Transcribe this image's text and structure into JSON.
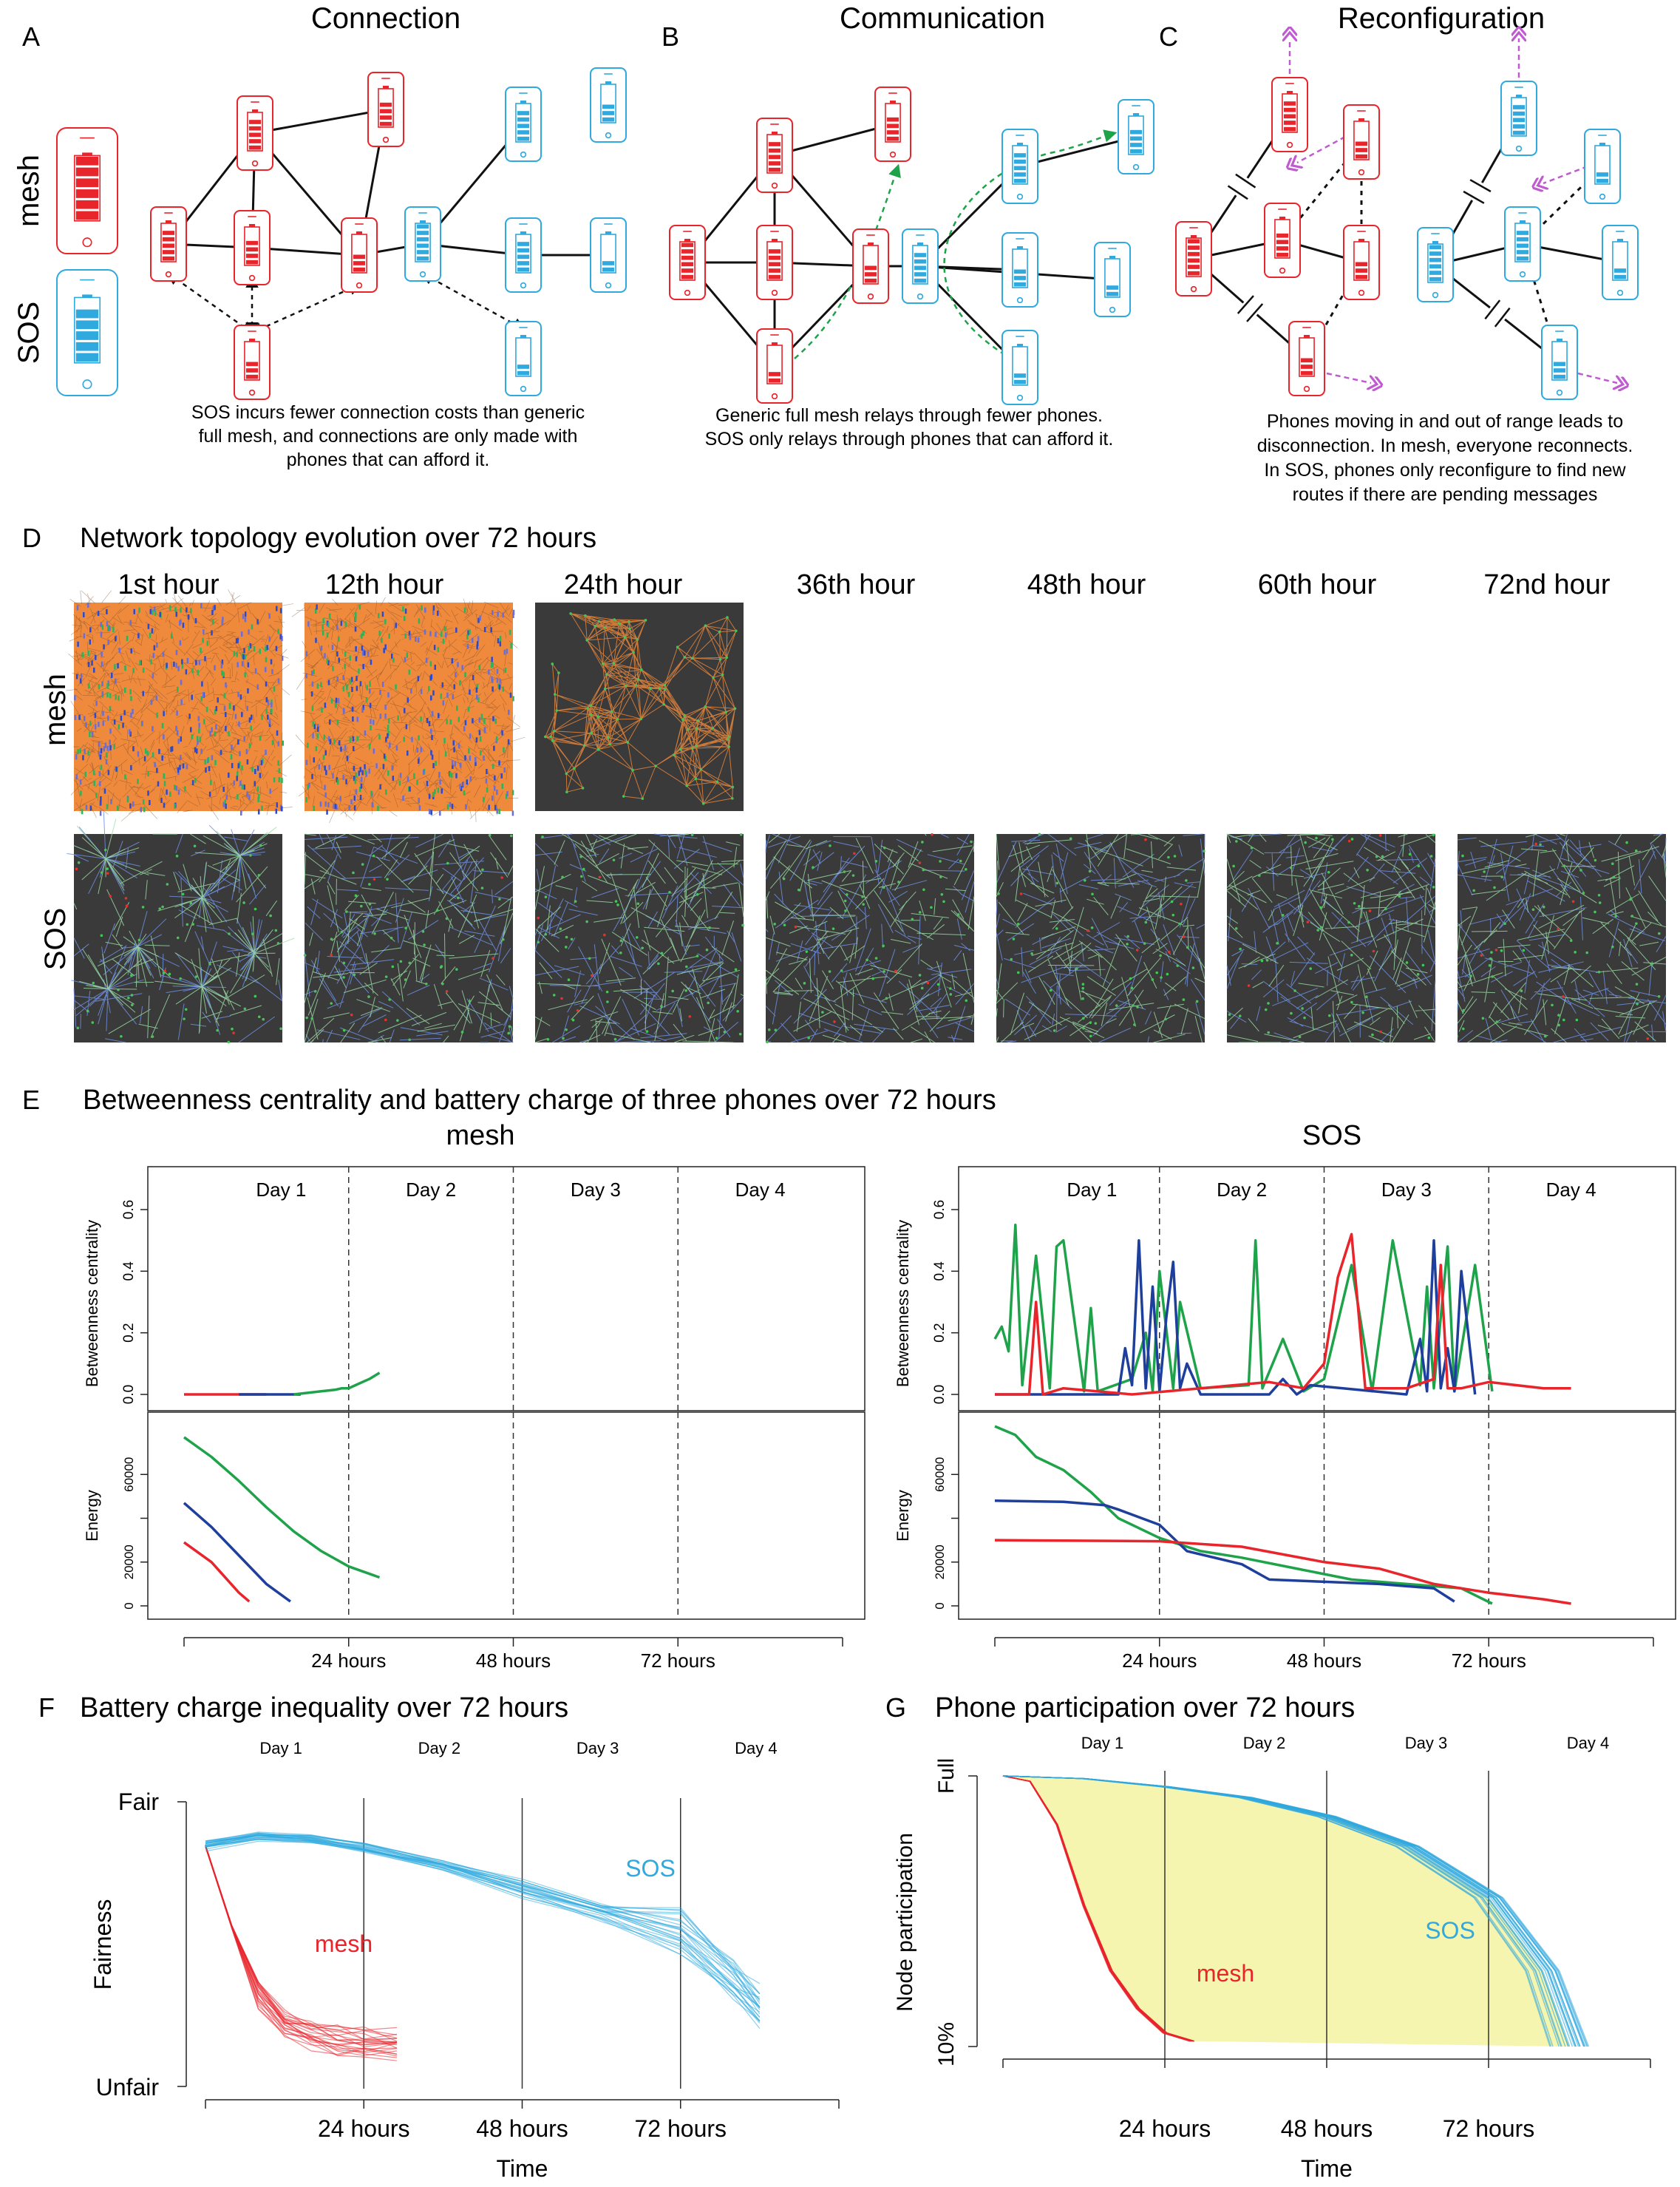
{
  "panelA": {
    "letter": "A",
    "title": "Connection",
    "legend_mesh": "mesh",
    "legend_sos": "SOS",
    "caption": [
      "SOS incurs fewer connection costs than generic",
      "full mesh, and connections are only made with",
      "phones that can afford it."
    ]
  },
  "panelB": {
    "letter": "B",
    "title": "Communication",
    "caption": [
      "Generic full mesh relays through fewer phones.",
      "SOS only relays through phones that can afford it."
    ]
  },
  "panelC": {
    "letter": "C",
    "title": "Reconfiguration",
    "caption": [
      "Phones moving in and out of range leads to",
      "disconnection. In mesh, everyone reconnects.",
      "In SOS, phones only reconfigure to find new",
      "routes if there are pending messages"
    ]
  },
  "panelD": {
    "letter": "D",
    "title": "Network topology evolution over 72 hours",
    "hours": [
      "1st hour",
      "12th hour",
      "24th hour",
      "36th hour",
      "48th hour",
      "60th hour",
      "72nd hour"
    ],
    "row_mesh": "mesh",
    "row_sos": "SOS"
  },
  "panelE": {
    "letter": "E",
    "title": "Betweenness centrality and battery charge of three phones over 72 hours",
    "mesh_title": "mesh",
    "sos_title": "SOS",
    "days": [
      "Day 1",
      "Day 2",
      "Day 3",
      "Day 4"
    ],
    "ylabel_bc": "Betweenness centrality",
    "ylabel_energy": "Energy",
    "bc_ticks": [
      "0.0",
      "0.2",
      "0.4",
      "0.6"
    ],
    "energy_ticks": [
      "0",
      "20000",
      "60000"
    ],
    "x_ticks": [
      "24 hours",
      "48 hours",
      "72 hours"
    ]
  },
  "panelF": {
    "letter": "F",
    "title": "Battery charge inequality over 72 hours",
    "ylabel": "Fairness",
    "xlabel": "Time",
    "y_top": "Fair",
    "y_bottom": "Unfair",
    "days": [
      "Day 1",
      "Day 2",
      "Day 3",
      "Day 4"
    ],
    "x_ticks": [
      "24 hours",
      "48 hours",
      "72 hours"
    ],
    "label_mesh": "mesh",
    "label_sos": "SOS"
  },
  "panelG": {
    "letter": "G",
    "title": "Phone participation over 72 hours",
    "ylabel": "Node participation",
    "xlabel": "Time",
    "y_top": "Full",
    "y_bottom": "10%",
    "days": [
      "Day 1",
      "Day 2",
      "Day 3",
      "Day 4"
    ],
    "x_ticks": [
      "24 hours",
      "48 hours",
      "72 hours"
    ],
    "label_mesh": "mesh",
    "label_sos": "SOS"
  },
  "colors": {
    "mesh": "#e8252b",
    "sos": "#30a9de",
    "green": "#1fa34a",
    "blue": "#1f3f9c",
    "orange": "#ef8a3c",
    "dark": "#3a3a3a",
    "magenta": "#c05ad0",
    "yellow": "#f6f5b0"
  },
  "chart_data": [
    {
      "type": "line",
      "title": "",
      "panel": "E mesh betweenness",
      "xlabel": "",
      "ylabel": "Betweenness centrality",
      "xlim": [
        0,
        96
      ],
      "ylim": [
        0,
        0.6
      ],
      "series": [
        {
          "color": "red",
          "x": [
            0,
            4,
            8,
            12
          ],
          "y": [
            0,
            0,
            0,
            0
          ]
        },
        {
          "color": "blue",
          "x": [
            8,
            12,
            17
          ],
          "y": [
            0,
            0,
            0
          ]
        },
        {
          "color": "green",
          "x": [
            16,
            18,
            20,
            22,
            23,
            24,
            25,
            26,
            27,
            28.5
          ],
          "y": [
            0,
            0.005,
            0.01,
            0.015,
            0.02,
            0.02,
            0.03,
            0.04,
            0.05,
            0.07
          ]
        }
      ]
    },
    {
      "type": "line",
      "title": "",
      "panel": "E mesh energy",
      "xlabel": "",
      "ylabel": "Energy",
      "xlim": [
        0,
        96
      ],
      "ylim": [
        0,
        80000
      ],
      "series": [
        {
          "color": "green",
          "x": [
            0,
            4,
            8,
            12,
            16,
            20,
            24,
            28.5
          ],
          "y": [
            77000,
            68000,
            57000,
            45000,
            34000,
            25000,
            18000,
            13000
          ]
        },
        {
          "color": "blue",
          "x": [
            0,
            4,
            8,
            12,
            15.5
          ],
          "y": [
            47000,
            36000,
            23000,
            10000,
            2000
          ]
        },
        {
          "color": "red",
          "x": [
            0,
            4,
            8,
            9.5
          ],
          "y": [
            29000,
            20000,
            6000,
            2000
          ]
        }
      ]
    },
    {
      "type": "line",
      "title": "",
      "panel": "E SOS betweenness",
      "xlabel": "",
      "ylabel": "Betweenness centrality",
      "xlim": [
        0,
        96
      ],
      "ylim": [
        0,
        0.6
      ],
      "series": [
        {
          "color": "green",
          "x": [
            0,
            1,
            2,
            3,
            4,
            6,
            8,
            9,
            10,
            13,
            14,
            15,
            20,
            22,
            23,
            24,
            26,
            27,
            30,
            37,
            38,
            39,
            42,
            45,
            48,
            52,
            55,
            58,
            62,
            63,
            64,
            66,
            67,
            70,
            72.5
          ],
          "y": [
            0.18,
            0.22,
            0.14,
            0.55,
            0.03,
            0.45,
            0.02,
            0.48,
            0.5,
            0.01,
            0.28,
            0.01,
            0.05,
            0.2,
            0.01,
            0.4,
            0.02,
            0.3,
            0.02,
            0.03,
            0.5,
            0.02,
            0.18,
            0.01,
            0.05,
            0.42,
            0.01,
            0.5,
            0.03,
            0.35,
            0.02,
            0.48,
            0.01,
            0.42,
            0.01
          ]
        },
        {
          "color": "blue",
          "x": [
            0,
            18,
            19,
            20,
            21,
            22,
            23,
            24,
            25,
            26,
            27,
            28,
            30,
            40,
            42,
            44,
            46,
            60,
            62,
            63,
            64,
            65,
            66,
            67,
            68,
            70
          ],
          "y": [
            0,
            0,
            0.15,
            0.03,
            0.5,
            0.02,
            0.35,
            0.01,
            0.25,
            0.43,
            0.02,
            0.1,
            0,
            0,
            0.05,
            0,
            0.03,
            0,
            0.18,
            0.01,
            0.5,
            0.02,
            0.15,
            0.01,
            0.4,
            0
          ]
        },
        {
          "color": "red",
          "x": [
            0,
            5,
            6,
            7,
            10,
            20,
            30,
            40,
            45,
            48,
            50,
            52,
            54,
            55,
            60,
            64,
            65,
            66,
            68,
            72,
            80,
            84
          ],
          "y": [
            0,
            0,
            0.3,
            0,
            0.02,
            0,
            0.02,
            0.04,
            0.02,
            0.1,
            0.38,
            0.52,
            0.02,
            0.02,
            0.02,
            0.05,
            0.42,
            0.02,
            0.02,
            0.04,
            0.02,
            0.02
          ]
        }
      ]
    },
    {
      "type": "line",
      "title": "",
      "panel": "E SOS energy",
      "xlabel": "",
      "ylabel": "Energy",
      "xlim": [
        0,
        96
      ],
      "ylim": [
        0,
        80000
      ],
      "series": [
        {
          "color": "green",
          "x": [
            0,
            3,
            6,
            10,
            14,
            18,
            24,
            30,
            36,
            44,
            52,
            60,
            68,
            72.5
          ],
          "y": [
            82000,
            78000,
            68000,
            62000,
            52000,
            40000,
            31000,
            25000,
            22000,
            17000,
            12000,
            10000,
            8000,
            1000
          ]
        },
        {
          "color": "blue",
          "x": [
            0,
            10,
            16,
            18,
            24,
            28,
            36,
            40,
            48,
            56,
            64,
            67
          ],
          "y": [
            48000,
            47500,
            46000,
            44000,
            37000,
            25000,
            19000,
            12000,
            11000,
            10000,
            8000,
            2000
          ]
        },
        {
          "color": "red",
          "x": [
            0,
            24,
            36,
            48,
            56,
            64,
            72,
            80,
            84
          ],
          "y": [
            30000,
            29500,
            27000,
            20000,
            17000,
            10000,
            6000,
            3000,
            1000
          ]
        }
      ]
    },
    {
      "type": "line",
      "title": "",
      "panel": "F",
      "xlabel": "Time",
      "ylabel": "Fairness",
      "xlim": [
        0,
        96
      ],
      "series": [
        {
          "name": "mesh",
          "x": [
            0,
            4,
            8,
            12,
            16,
            20,
            24,
            29
          ],
          "y": [
            0.83,
            0.55,
            0.32,
            0.22,
            0.18,
            0.16,
            0.15,
            0.14
          ]
        },
        {
          "name": "SOS",
          "x": [
            0,
            8,
            16,
            24,
            36,
            48,
            60,
            72,
            80,
            84
          ],
          "y": [
            0.83,
            0.86,
            0.85,
            0.82,
            0.76,
            0.68,
            0.6,
            0.52,
            0.35,
            0.25
          ]
        }
      ]
    },
    {
      "type": "area",
      "title": "",
      "panel": "G",
      "xlabel": "Time",
      "ylabel": "Node participation",
      "xlim": [
        0,
        96
      ],
      "series": [
        {
          "name": "mesh",
          "x": [
            0,
            4,
            8,
            12,
            16,
            20,
            24,
            28
          ],
          "y": [
            1.0,
            0.98,
            0.82,
            0.52,
            0.28,
            0.14,
            0.05,
            0.02
          ]
        },
        {
          "name": "SOS",
          "x": [
            0,
            12,
            24,
            36,
            48,
            60,
            72,
            80,
            84
          ],
          "y": [
            1.0,
            0.99,
            0.96,
            0.92,
            0.85,
            0.74,
            0.55,
            0.28,
            0.0
          ]
        }
      ]
    }
  ]
}
